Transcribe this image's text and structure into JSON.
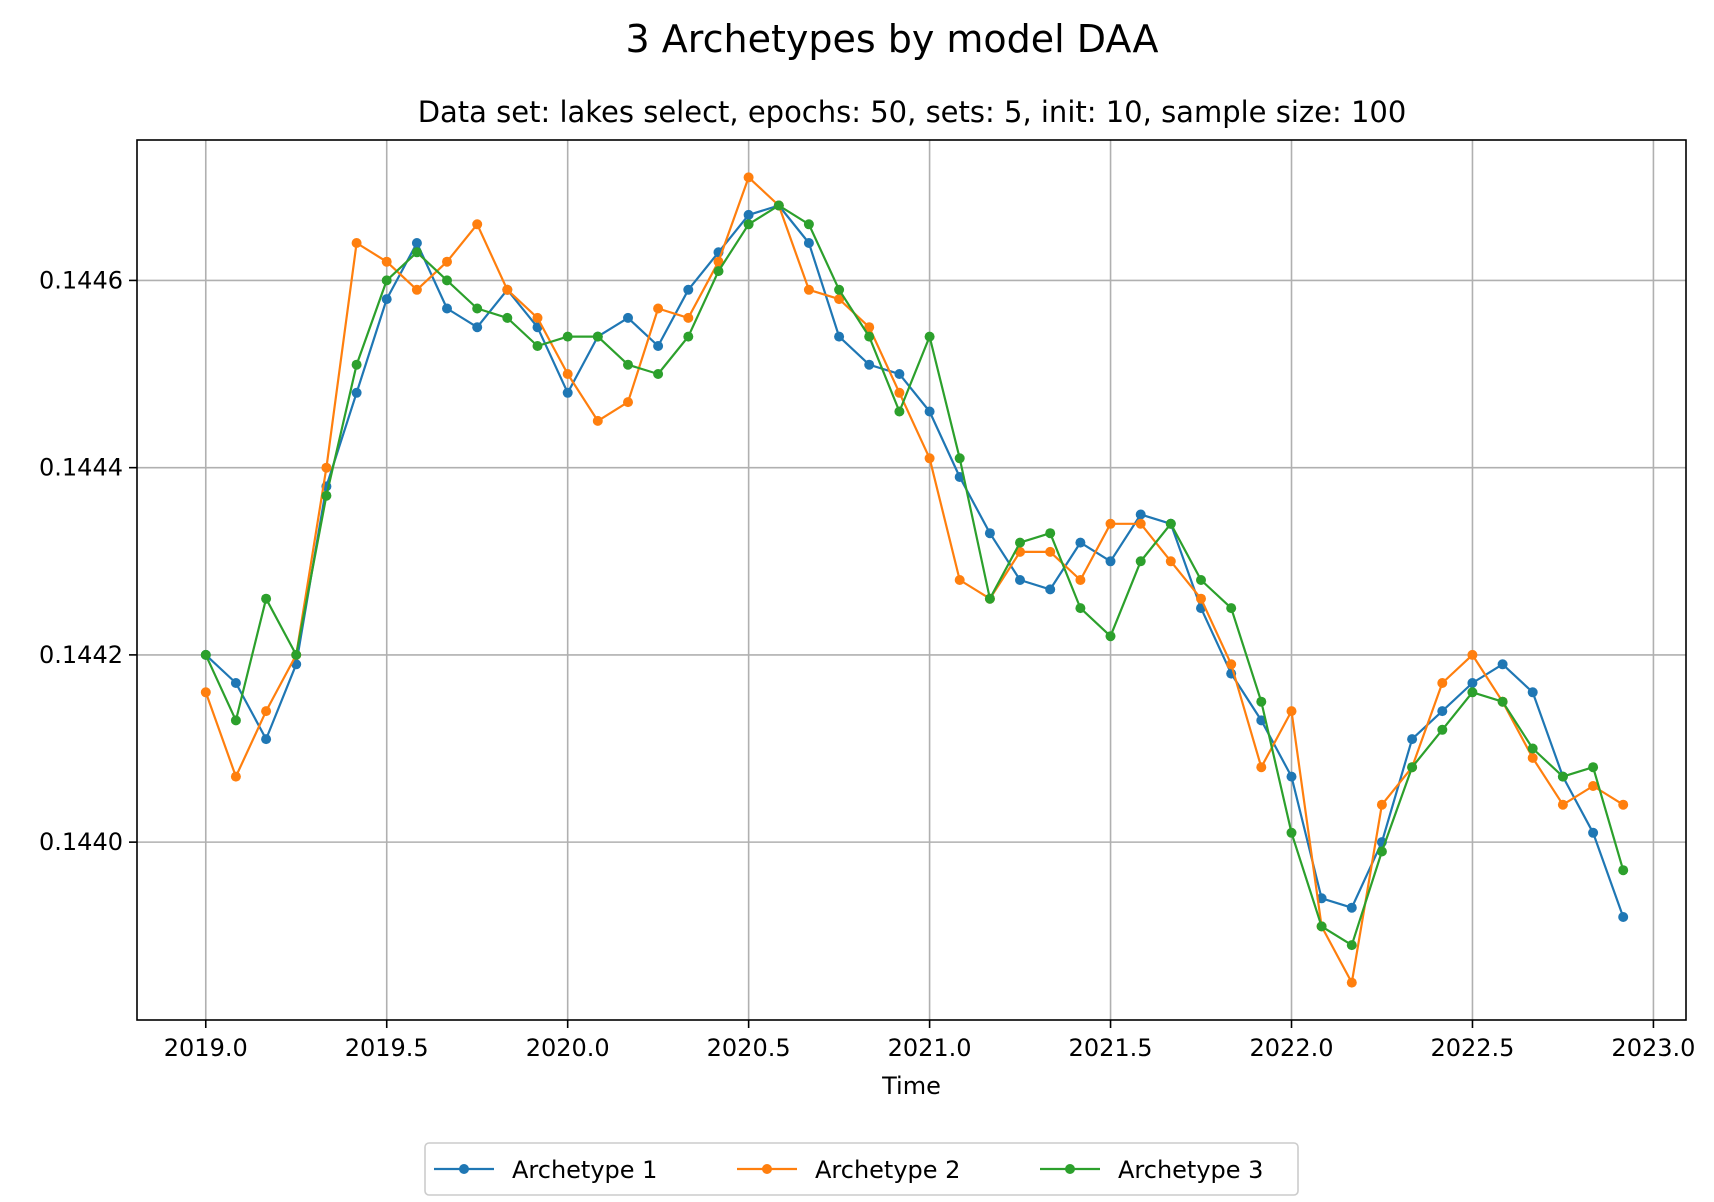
{
  "chart_data": {
    "type": "line",
    "title": "3 Archetypes by model DAA",
    "subtitle": "Data set: lakes select, epochs: 50, sets: 5, init: 10, sample size: 100",
    "xlabel": "Time",
    "ylabel": "",
    "xlim": [
      2018.81,
      2023.09
    ],
    "ylim": [
      0.14381,
      0.14475
    ],
    "xticks": [
      2019.0,
      2019.5,
      2020.0,
      2020.5,
      2021.0,
      2021.5,
      2022.0,
      2022.5,
      2023.0
    ],
    "xtick_labels": [
      "2019.0",
      "2019.5",
      "2020.0",
      "2020.5",
      "2021.0",
      "2021.5",
      "2022.0",
      "2022.5",
      "2023.0"
    ],
    "yticks": [
      0.144,
      0.1442,
      0.1444,
      0.1446
    ],
    "ytick_labels": [
      "0.1440",
      "0.1442",
      "0.1444",
      "0.1446"
    ],
    "grid": true,
    "legend_position": "bottom-center",
    "x_start": 2019.0,
    "x_step": 0.08333,
    "series": [
      {
        "name": "Archetype 1",
        "color": "#1f77b4",
        "values": [
          0.1442,
          0.14417,
          0.14411,
          0.14419,
          0.14438,
          0.14448,
          0.14458,
          0.14464,
          0.14457,
          0.14455,
          0.14459,
          0.14455,
          0.14448,
          0.14454,
          0.14456,
          0.14453,
          0.14459,
          0.14463,
          0.14467,
          0.14468,
          0.14464,
          0.14454,
          0.14451,
          0.1445,
          0.14446,
          0.14439,
          0.14433,
          0.14428,
          0.14427,
          0.14432,
          0.1443,
          0.14435,
          0.14434,
          0.14425,
          0.14418,
          0.14413,
          0.14407,
          0.14394,
          0.14393,
          0.144,
          0.14411,
          0.14414,
          0.14417,
          0.14419,
          0.14416,
          0.14407,
          0.14401,
          0.14392
        ]
      },
      {
        "name": "Archetype 2",
        "color": "#ff7f0e",
        "values": [
          0.14416,
          0.14407,
          0.14414,
          0.1442,
          0.1444,
          0.14464,
          0.14462,
          0.14459,
          0.14462,
          0.14466,
          0.14459,
          0.14456,
          0.1445,
          0.14445,
          0.14447,
          0.14457,
          0.14456,
          0.14462,
          0.14471,
          0.14468,
          0.14459,
          0.14458,
          0.14455,
          0.14448,
          0.14441,
          0.14428,
          0.14426,
          0.14431,
          0.14431,
          0.14428,
          0.14434,
          0.14434,
          0.1443,
          0.14426,
          0.14419,
          0.14408,
          0.14414,
          0.14391,
          0.14385,
          0.14404,
          0.14408,
          0.14417,
          0.1442,
          0.14415,
          0.14409,
          0.14404,
          0.14406,
          0.14404
        ]
      },
      {
        "name": "Archetype 3",
        "color": "#2ca02c",
        "values": [
          0.1442,
          0.14413,
          0.14426,
          0.1442,
          0.14437,
          0.14451,
          0.1446,
          0.14463,
          0.1446,
          0.14457,
          0.14456,
          0.14453,
          0.14454,
          0.14454,
          0.14451,
          0.1445,
          0.14454,
          0.14461,
          0.14466,
          0.14468,
          0.14466,
          0.14459,
          0.14454,
          0.14446,
          0.14454,
          0.14441,
          0.14426,
          0.14432,
          0.14433,
          0.14425,
          0.14422,
          0.1443,
          0.14434,
          0.14428,
          0.14425,
          0.14415,
          0.14401,
          0.14391,
          0.14389,
          0.14399,
          0.14408,
          0.14412,
          0.14416,
          0.14415,
          0.1441,
          0.14407,
          0.14408,
          0.14397
        ]
      }
    ]
  }
}
